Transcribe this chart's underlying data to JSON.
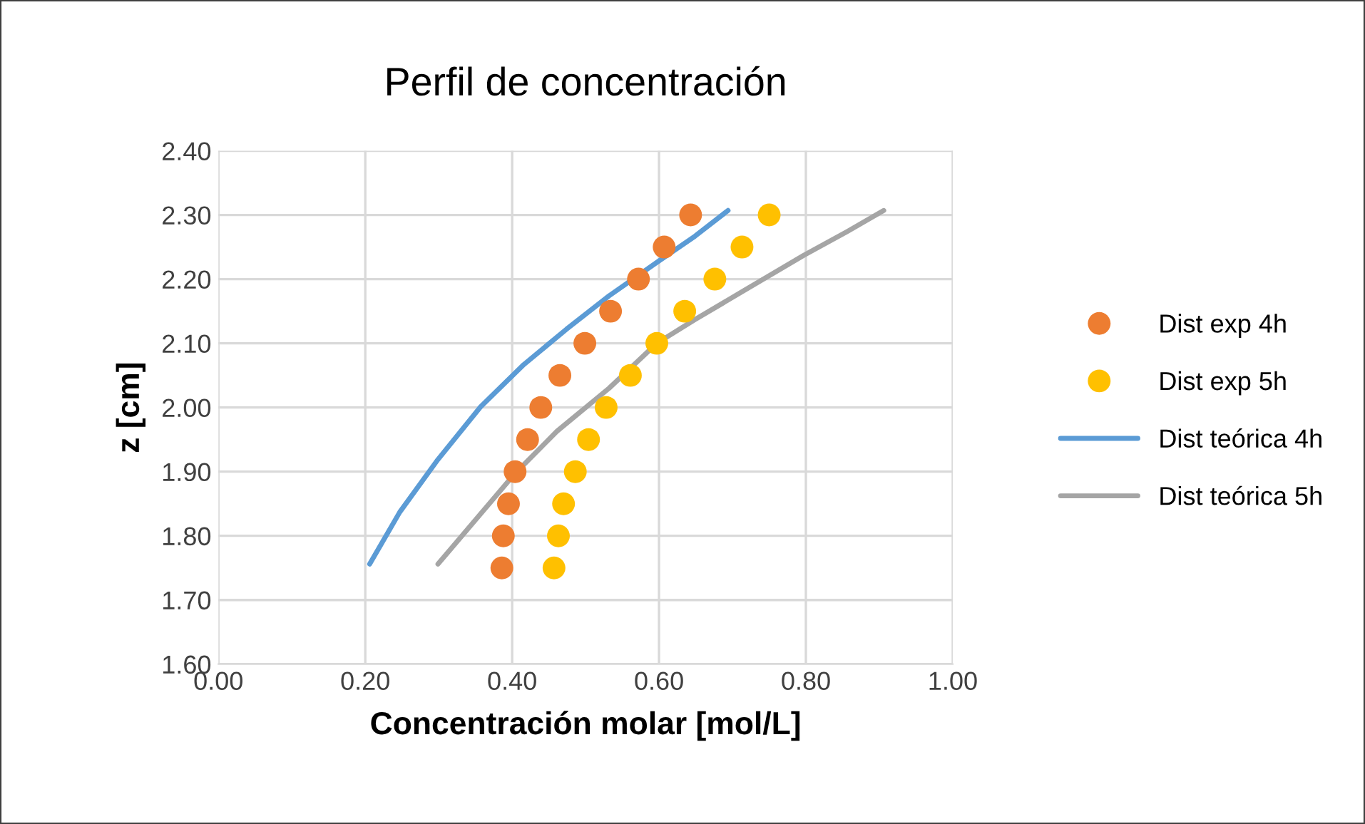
{
  "chart_data": {
    "type": "scatter",
    "title": "Perfil de concentración",
    "xlabel": "Concentración molar [mol/L]",
    "ylabel": "z [cm]",
    "xlim": [
      0,
      1
    ],
    "xticks": [
      {
        "value": 0,
        "label": "0.00"
      },
      {
        "value": 0.2,
        "label": "0.20"
      },
      {
        "value": 0.4,
        "label": "0.40"
      },
      {
        "value": 0.6,
        "label": "0.60"
      },
      {
        "value": 0.8,
        "label": "0.80"
      },
      {
        "value": 1,
        "label": "1.00"
      }
    ],
    "ylim": [
      1.6,
      2.4
    ],
    "yticks": [
      {
        "value": 1.6,
        "label": "1.60"
      },
      {
        "value": 1.7,
        "label": "1.70"
      },
      {
        "value": 1.8,
        "label": "1.80"
      },
      {
        "value": 1.9,
        "label": "1.90"
      },
      {
        "value": 2.0,
        "label": "2.00"
      },
      {
        "value": 2.1,
        "label": "2.10"
      },
      {
        "value": 2.2,
        "label": "2.20"
      },
      {
        "value": 2.3,
        "label": "2.30"
      },
      {
        "value": 2.4,
        "label": "2.40"
      }
    ],
    "grid": true,
    "legend": "right",
    "series": [
      {
        "name": "Dist exp 4h",
        "marker": "circle",
        "color": "#ed7d31",
        "x": [
          0.643,
          0.607,
          0.572,
          0.534,
          0.499,
          0.465,
          0.439,
          0.421,
          0.404,
          0.395,
          0.388,
          0.386
        ],
        "values": [
          2.3,
          2.25,
          2.2,
          2.15,
          2.1,
          2.05,
          2.0,
          1.95,
          1.9,
          1.85,
          1.8,
          1.75
        ]
      },
      {
        "name": "Dist exp 5h",
        "marker": "circle",
        "color": "#ffc000",
        "x": [
          0.75,
          0.713,
          0.676,
          0.635,
          0.597,
          0.561,
          0.528,
          0.504,
          0.486,
          0.47,
          0.463,
          0.457
        ],
        "values": [
          2.3,
          2.25,
          2.2,
          2.15,
          2.1,
          2.05,
          2.0,
          1.95,
          1.9,
          1.85,
          1.8,
          1.75
        ]
      },
      {
        "name": "Dist teórica 4h",
        "type": "line",
        "color": "#5b9bd5",
        "x": [
          0.206,
          0.247,
          0.299,
          0.357,
          0.416,
          0.474,
          0.532,
          0.597,
          0.649,
          0.694
        ],
        "values": [
          1.756,
          1.837,
          1.919,
          2.001,
          2.067,
          2.122,
          2.174,
          2.226,
          2.267,
          2.307
        ]
      },
      {
        "name": "Dist teórica 5h",
        "type": "line",
        "color": "#a5a5a5",
        "x": [
          0.299,
          0.351,
          0.403,
          0.461,
          0.532,
          0.597,
          0.649,
          0.72,
          0.797,
          0.856,
          0.906
        ],
        "values": [
          1.756,
          1.826,
          1.896,
          1.963,
          2.03,
          2.1,
          2.137,
          2.185,
          2.237,
          2.274,
          2.307
        ]
      }
    ]
  }
}
